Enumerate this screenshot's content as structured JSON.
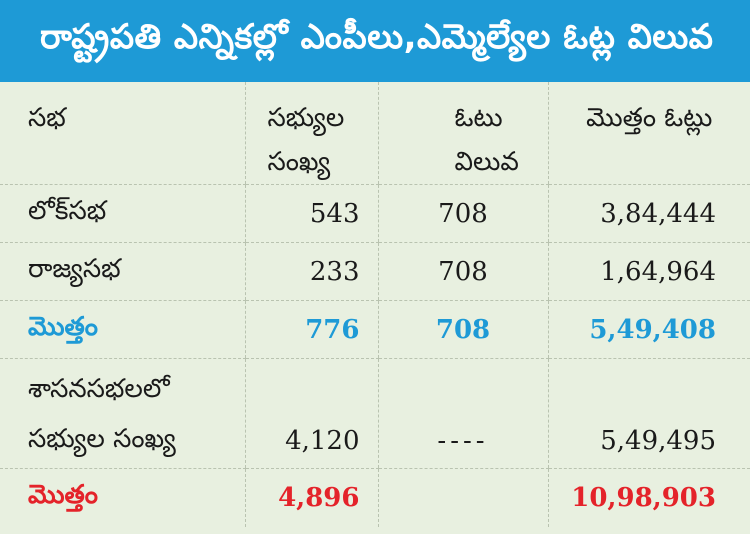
{
  "title": "రాష్ట్రపతి ఎన్నికల్లో ఎంపీలు,ఎమ్మెల్యేల ఓట్ల విలువ",
  "columns": {
    "house": "సభ",
    "members_line1": "సభ్యుల",
    "members_line2": "సంఖ్య",
    "vote_line1": "ఓటు",
    "vote_line2": "విలువ",
    "total_votes": "మొత్తం ఓట్లు"
  },
  "rows": [
    {
      "house": "లోక్‌సభ",
      "members": "543",
      "vote_value": "708",
      "total_votes": "3,84,444"
    },
    {
      "house": "రాజ్యసభ",
      "members": "233",
      "vote_value": "708",
      "total_votes": "1,64,964"
    },
    {
      "house": "మొత్తం",
      "members": "776",
      "vote_value": "708",
      "total_votes": "5,49,408"
    },
    {
      "house_line1": "శాసనసభలలో",
      "house_line2": "సభ్యుల సంఖ్య",
      "members": "4,120",
      "vote_value": "----",
      "total_votes": "5,49,495"
    },
    {
      "house": "మొత్తం",
      "members": "4,896",
      "vote_value": "",
      "total_votes": "10,98,903"
    }
  ],
  "colors": {
    "header_bg": "#1e9ad6",
    "table_bg": "#e8f0e0",
    "subtotal_text": "#1e9ad6",
    "grand_total_text": "#e4232a"
  }
}
